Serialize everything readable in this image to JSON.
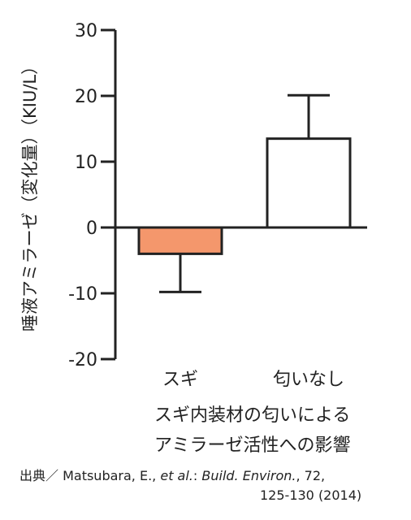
{
  "chart_data": {
    "type": "bar",
    "categories": [
      "スギ",
      "匂いなし"
    ],
    "values": [
      -4,
      13.5
    ],
    "errors": [
      5.8,
      6.6
    ],
    "colors": [
      "#f4976c",
      "#ffffff"
    ],
    "ylabel": "唾液アミラーゼ（変化量）（KIU/L）",
    "ylim": [
      -20,
      30
    ],
    "yticks": [
      30,
      20,
      10,
      0,
      -10,
      -20
    ],
    "ytick_labels": [
      "30",
      "20",
      "10",
      "0",
      "-10",
      "-20"
    ],
    "grid": false
  },
  "caption": {
    "line1": "スギ内装材の匂いによる",
    "line2": "アミラーゼ活性への影響"
  },
  "source": {
    "prefix": "出典／ Matsubara, E., ",
    "etal": "et al.",
    "colon": ": ",
    "journal": "Build. Environ.",
    "rest": ", 72,",
    "line2": "125-130 (2014)"
  }
}
